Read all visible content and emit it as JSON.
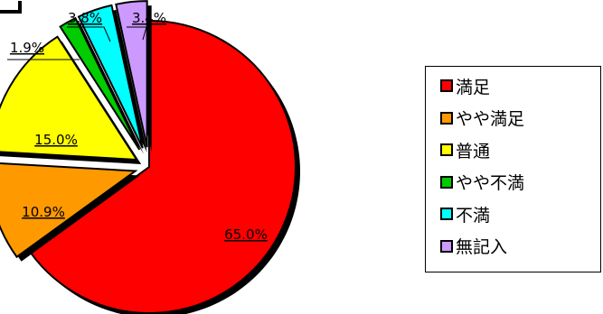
{
  "chart_data": {
    "type": "pie",
    "exploded": true,
    "shadow": true,
    "categories": [
      "満足",
      "やや満足",
      "普通",
      "やや不満",
      "不満",
      "無記入"
    ],
    "values": [
      65.0,
      10.9,
      15.0,
      1.9,
      3.8,
      3.4
    ],
    "data_labels": [
      "65.0%",
      "10.9%",
      "15.0%",
      "1.9%",
      "3.8%",
      "3.4%"
    ],
    "colors": [
      "#ff0000",
      "#ff9900",
      "#ffff00",
      "#00cc00",
      "#00ffff",
      "#cc99ff"
    ],
    "legend_position": "right"
  }
}
